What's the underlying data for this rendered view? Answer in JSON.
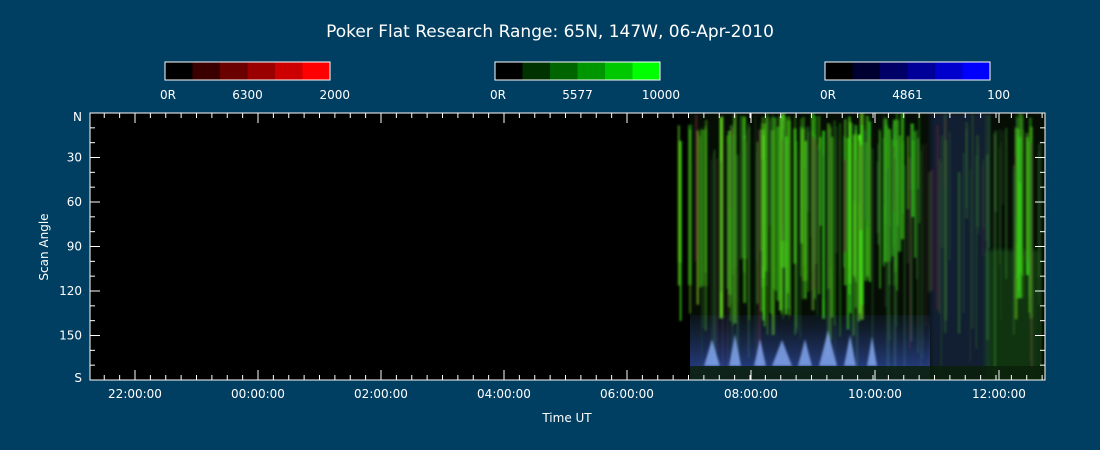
{
  "chart_data": {
    "type": "heatmap",
    "title": "Poker Flat Research Range: 65N, 147W, 06-Apr-2010",
    "xlabel": "Time UT",
    "ylabel": "Scan Angle",
    "x_ticks": [
      "22:00:00",
      "00:00:00",
      "02:00:00",
      "04:00:00",
      "06:00:00",
      "08:00:00",
      "10:00:00",
      "12:00:00"
    ],
    "y_ticks": [
      "N",
      "30",
      "60",
      "90",
      "120",
      "150",
      "S"
    ],
    "y_values": [
      0,
      30,
      60,
      90,
      120,
      150,
      180
    ],
    "colorbars": [
      {
        "name": "6300",
        "min_label": "0R",
        "max_label": "2000",
        "colors": [
          "#000000",
          "#3a0000",
          "#6a0000",
          "#9a0000",
          "#cc0000",
          "#ff0000"
        ]
      },
      {
        "name": "5577",
        "min_label": "0R",
        "max_label": "10000",
        "colors": [
          "#000000",
          "#003200",
          "#006400",
          "#009600",
          "#00c800",
          "#00ff00"
        ]
      },
      {
        "name": "4861",
        "min_label": "0R",
        "max_label": "100",
        "colors": [
          "#000000",
          "#000030",
          "#000066",
          "#000099",
          "#0000cc",
          "#0000ff"
        ]
      }
    ]
  }
}
